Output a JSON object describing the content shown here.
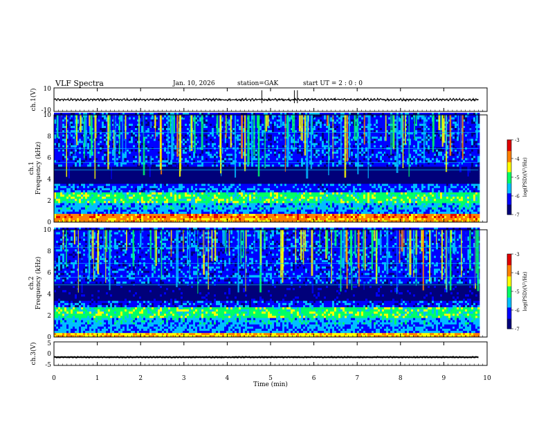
{
  "header": {
    "title": "VLF  Spectra",
    "date": "Jan. 10, 2026",
    "station": "station=GAK",
    "start_ut": "start  UT =   2  : 0   : 0"
  },
  "colors": {
    "colormap": [
      "#00007a",
      "#0000ff",
      "#00bfff",
      "#00ff66",
      "#ffff00",
      "#ff8000",
      "#e00000",
      "#ffffff"
    ]
  },
  "chart_data": [
    {
      "type": "line",
      "panel": "ch1-waveform",
      "ylabel": "ch.1(V)",
      "ylim": [
        -10,
        10
      ],
      "yticks": [
        "10",
        "-10"
      ],
      "baseline_level_v": 0,
      "fluctuation_v": 1,
      "spikes_min": [
        4.8,
        5.55,
        5.62
      ]
    },
    {
      "type": "heatmap",
      "panel": "ch1-spectrogram",
      "ylabel": "ch.1\nFrequency (kHz)",
      "ylim": [
        0,
        10
      ],
      "yticks": [
        "0",
        "2",
        "4",
        "6",
        "8",
        "10"
      ],
      "xlim": [
        0,
        10
      ],
      "data_end_min": 9.8,
      "zlim": [
        -7,
        -3
      ],
      "bands": [
        {
          "from_khz": 0,
          "to_khz": 0.3,
          "level": -4
        },
        {
          "from_khz": 0.3,
          "to_khz": 0.8,
          "level": -3.8
        },
        {
          "from_khz": 0.8,
          "to_khz": 1.2,
          "level": -5.8
        },
        {
          "from_khz": 1.2,
          "to_khz": 1.6,
          "level": -5.6
        },
        {
          "from_khz": 1.6,
          "to_khz": 2.8,
          "level": -5
        },
        {
          "from_khz": 2.8,
          "to_khz": 3.6,
          "level": -6
        },
        {
          "from_khz": 3.6,
          "to_khz": 5.2,
          "level": -6.9
        },
        {
          "from_khz": 5.2,
          "to_khz": 10,
          "level": -6.1
        }
      ],
      "colorbar": {
        "label": "log(PSD)(V²/Hz)",
        "ticks": [
          "-3",
          "-4",
          "-5",
          "-6",
          "-7"
        ]
      }
    },
    {
      "type": "heatmap",
      "panel": "ch2-spectrogram",
      "ylabel": "ch.2\nFrequency (kHz)",
      "ylim": [
        0,
        10
      ],
      "yticks": [
        "0",
        "2",
        "4",
        "6",
        "8",
        "10"
      ],
      "xlim": [
        0,
        10
      ],
      "data_end_min": 9.8,
      "zlim": [
        -7,
        -3
      ],
      "bands": [
        {
          "from_khz": 0,
          "to_khz": 0.3,
          "level": -4.2
        },
        {
          "from_khz": 0.3,
          "to_khz": 1.2,
          "level": -5.8
        },
        {
          "from_khz": 1.2,
          "to_khz": 1.6,
          "level": -5.6
        },
        {
          "from_khz": 1.6,
          "to_khz": 2.8,
          "level": -5
        },
        {
          "from_khz": 2.8,
          "to_khz": 3.4,
          "level": -6.1
        },
        {
          "from_khz": 3.4,
          "to_khz": 5.0,
          "level": -6.8
        },
        {
          "from_khz": 5.0,
          "to_khz": 10,
          "level": -6.1
        }
      ],
      "colorbar": {
        "label": "log(PSD)(V²/Hz)",
        "ticks": [
          "-3",
          "-4",
          "-5",
          "-6",
          "-7"
        ]
      }
    },
    {
      "type": "line",
      "panel": "ch3-waveform",
      "ylabel": "ch.3(V)",
      "ylim": [
        -5,
        5
      ],
      "yticks": [
        "5",
        "0",
        "-5"
      ],
      "baseline_level_v": -1.5,
      "xlabel": "Time  (min)",
      "xlim": [
        0,
        10
      ],
      "xticks": [
        "0",
        "1",
        "2",
        "3",
        "4",
        "5",
        "6",
        "7",
        "8",
        "9",
        "10"
      ]
    }
  ]
}
